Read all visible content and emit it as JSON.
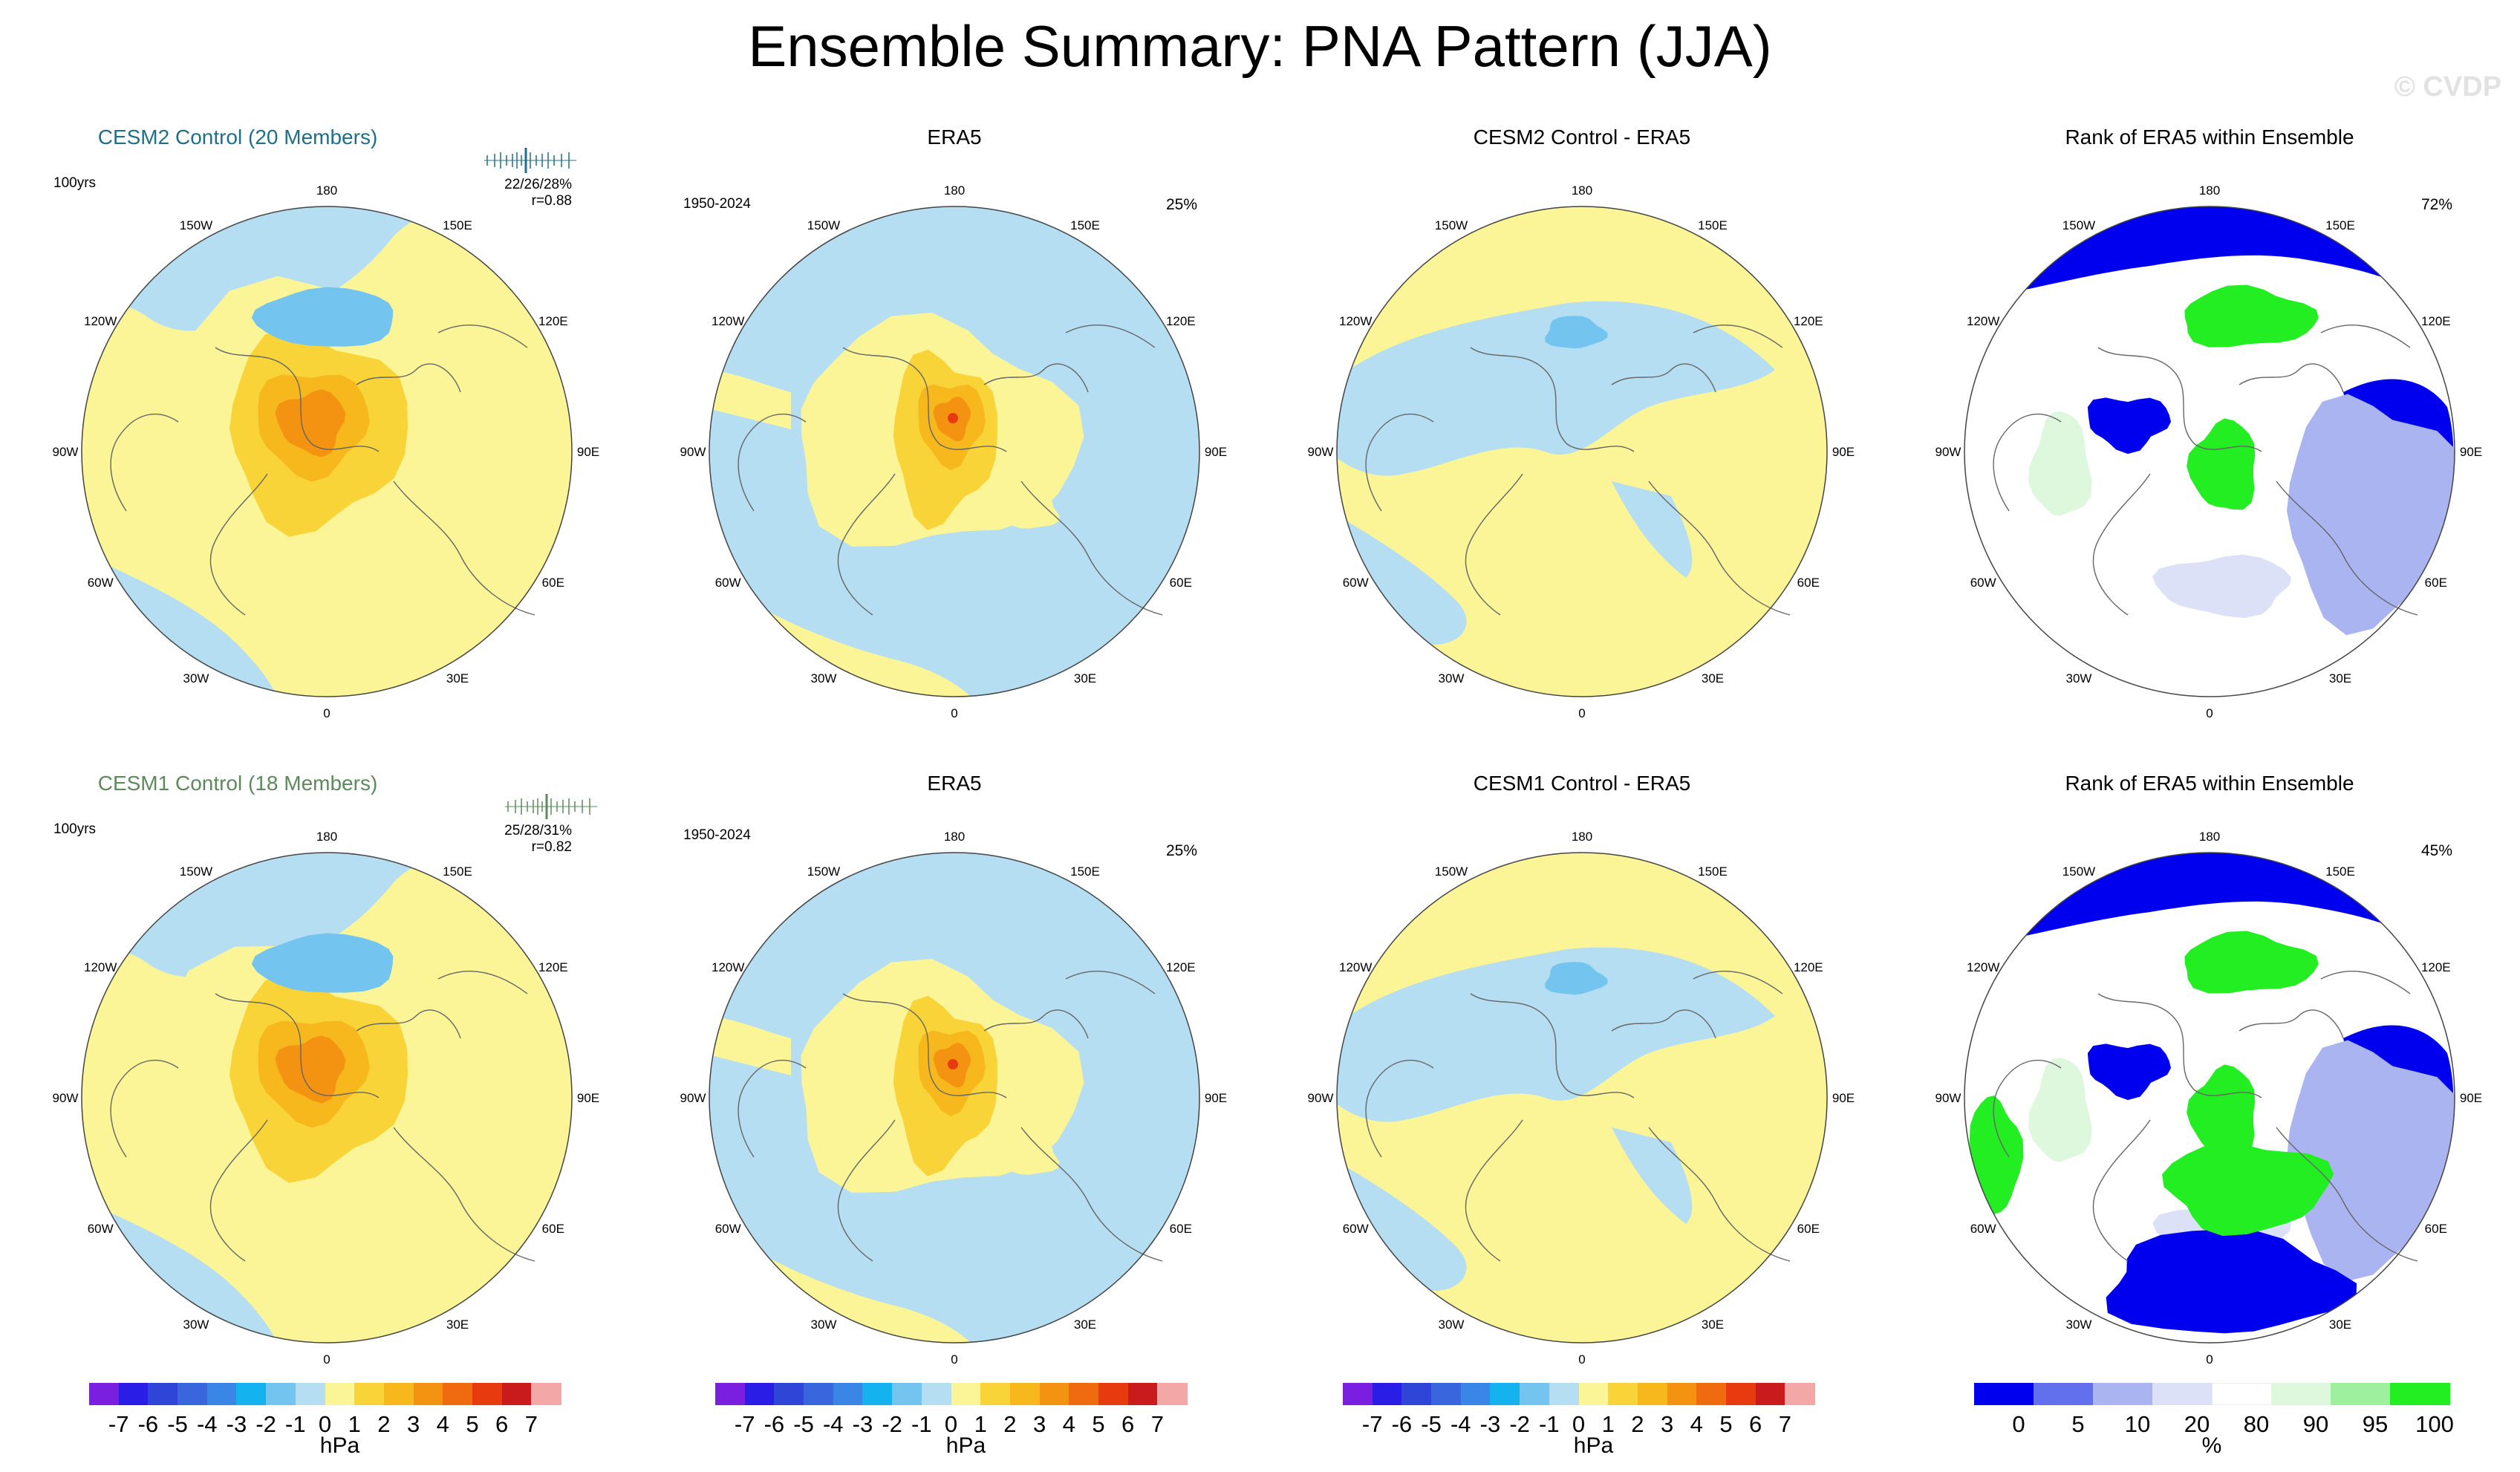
{
  "title": "Ensemble Summary: PNA Pattern (JJA)",
  "watermark": "© CVDP",
  "colors": {
    "land_line": "#666666",
    "circle": "#444444",
    "ens1_title": "#1f6f8b",
    "ens2_title": "#5b8a5b",
    "tick_line1": "#1f6f8b",
    "tick_line2": "#5b8a5b"
  },
  "lon_labels": [
    "180",
    "150E",
    "120E",
    "90E",
    "60E",
    "30E",
    "0",
    "30W",
    "60W",
    "90W",
    "120W",
    "150W"
  ],
  "rows": [
    {
      "panels": [
        {
          "title": "CESM2 Control (20 Members)",
          "title_color": "#1f6f8b",
          "period": "100yrs",
          "stats_line1": "22/26/28%",
          "stats_line2": "r=0.88",
          "kind": "mean"
        },
        {
          "title": "ERA5",
          "period": "1950-2024",
          "pct": "25%",
          "kind": "obs"
        },
        {
          "title": "CESM2 Control - ERA5",
          "kind": "diff"
        },
        {
          "title": "Rank of ERA5 within Ensemble",
          "pct": "72%",
          "kind": "rank"
        }
      ]
    },
    {
      "panels": [
        {
          "title": "CESM1 Control (18 Members)",
          "title_color": "#5b8a5b",
          "period": "100yrs",
          "stats_line1": "25/28/31%",
          "stats_line2": "r=0.82",
          "kind": "mean"
        },
        {
          "title": "ERA5",
          "period": "1950-2024",
          "pct": "25%",
          "kind": "obs"
        },
        {
          "title": "CESM1 Control - ERA5",
          "kind": "diff"
        },
        {
          "title": "Rank of ERA5 within Ensemble",
          "pct": "45%",
          "kind": "rank"
        }
      ]
    }
  ],
  "chart_data": {
    "type": "heatmap",
    "description_units": "sea level pressure regression, hPa; rank of ERA5 within ensemble, %",
    "projection": "north polar stereographic",
    "hpa_colorbar": {
      "unit": "hPa",
      "labels": [
        "-7",
        "-6",
        "-5",
        "-4",
        "-3",
        "-2",
        "-1",
        "0",
        "1",
        "2",
        "3",
        "4",
        "5",
        "6",
        "7"
      ],
      "colors": [
        "#7a1fe0",
        "#2a1ee6",
        "#2f45d8",
        "#3a66dd",
        "#3a86e6",
        "#15b2f0",
        "#73c4ee",
        "#b5def2",
        "#fbf598",
        "#f9d438",
        "#f6b81c",
        "#f49311",
        "#f06a10",
        "#e73a0f",
        "#c91b1b",
        "#f4a7a7"
      ]
    },
    "pct_colorbar": {
      "unit": "%",
      "labels": [
        "0",
        "5",
        "10",
        "20",
        "80",
        "90",
        "95",
        "100"
      ],
      "boundaries": [
        0,
        5,
        10,
        20,
        80,
        90,
        95,
        100
      ],
      "colors": [
        "#0000ee",
        "#6270ee",
        "#aab4f0",
        "#dde1f8",
        "#ffffff",
        "#ddf8dd",
        "#9ef09e",
        "#22ee22"
      ]
    }
  }
}
